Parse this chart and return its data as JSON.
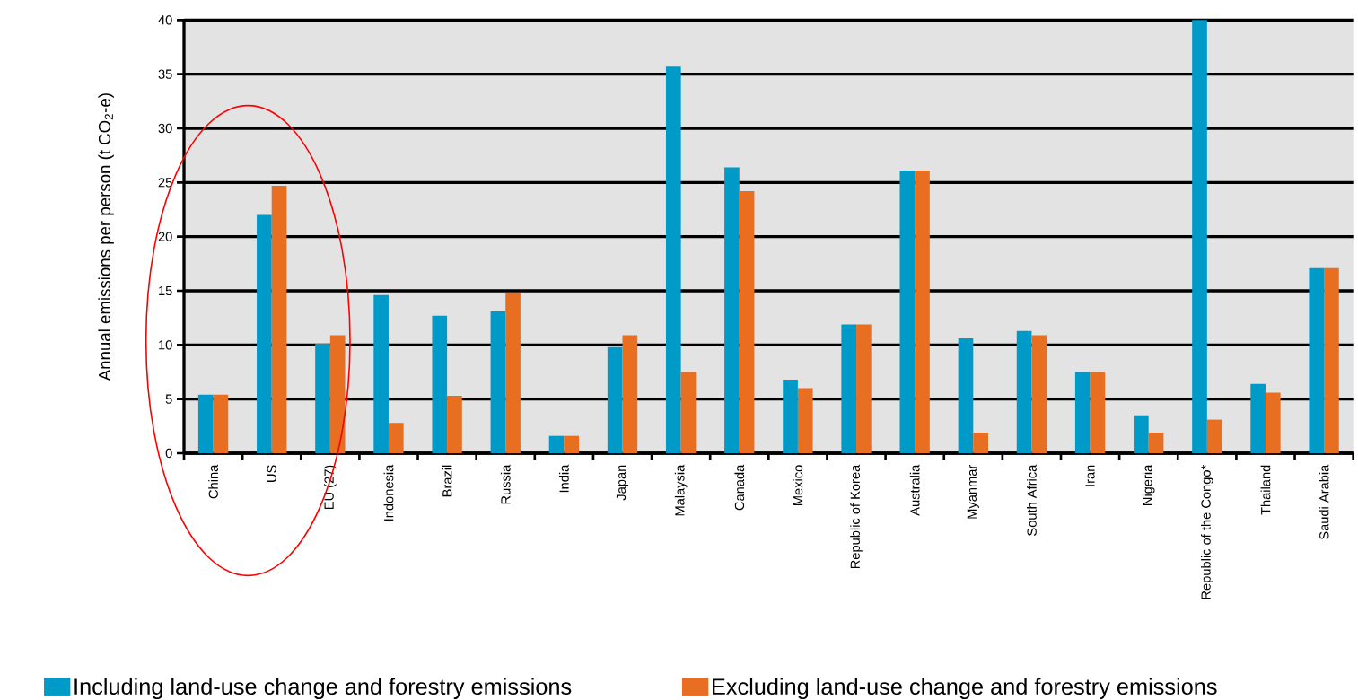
{
  "chart_data": {
    "type": "bar",
    "ylabel": "Annual emissions per person (t CO$_{2}$-e)",
    "categories": [
      "China",
      "US",
      "EU (27)",
      "Indonesia",
      "Brazil",
      "Russia",
      "India",
      "Japan",
      "Malaysia",
      "Canada",
      "Mexico",
      "Republic of Korea",
      "Australia",
      "Myanmar",
      "South Africa",
      "Iran",
      "Nigeria",
      "Republic of the Congo*",
      "Thailand",
      "Saudi Arabia"
    ],
    "series": [
      {
        "name": "Including land-use change and forestry emissions",
        "color": "#009ac9",
        "values": [
          5.4,
          22.0,
          10.1,
          14.6,
          12.7,
          13.1,
          1.6,
          9.8,
          35.7,
          26.4,
          6.8,
          11.9,
          26.1,
          10.6,
          11.3,
          7.5,
          3.5,
          40,
          6.4,
          17.1
        ]
      },
      {
        "name": "Excluding land-use change and forestry emissions",
        "color": "#e86e22",
        "values": [
          5.4,
          24.7,
          10.9,
          2.8,
          5.3,
          14.8,
          1.6,
          10.9,
          7.5,
          24.2,
          6.0,
          11.9,
          26.1,
          1.9,
          10.9,
          7.5,
          1.9,
          3.1,
          5.6,
          17.1
        ]
      }
    ],
    "ylim": [
      0,
      40
    ],
    "yticks": [
      0,
      5,
      10,
      15,
      20,
      25,
      30,
      35,
      40
    ],
    "grid": "y",
    "legend": "bottom"
  }
}
